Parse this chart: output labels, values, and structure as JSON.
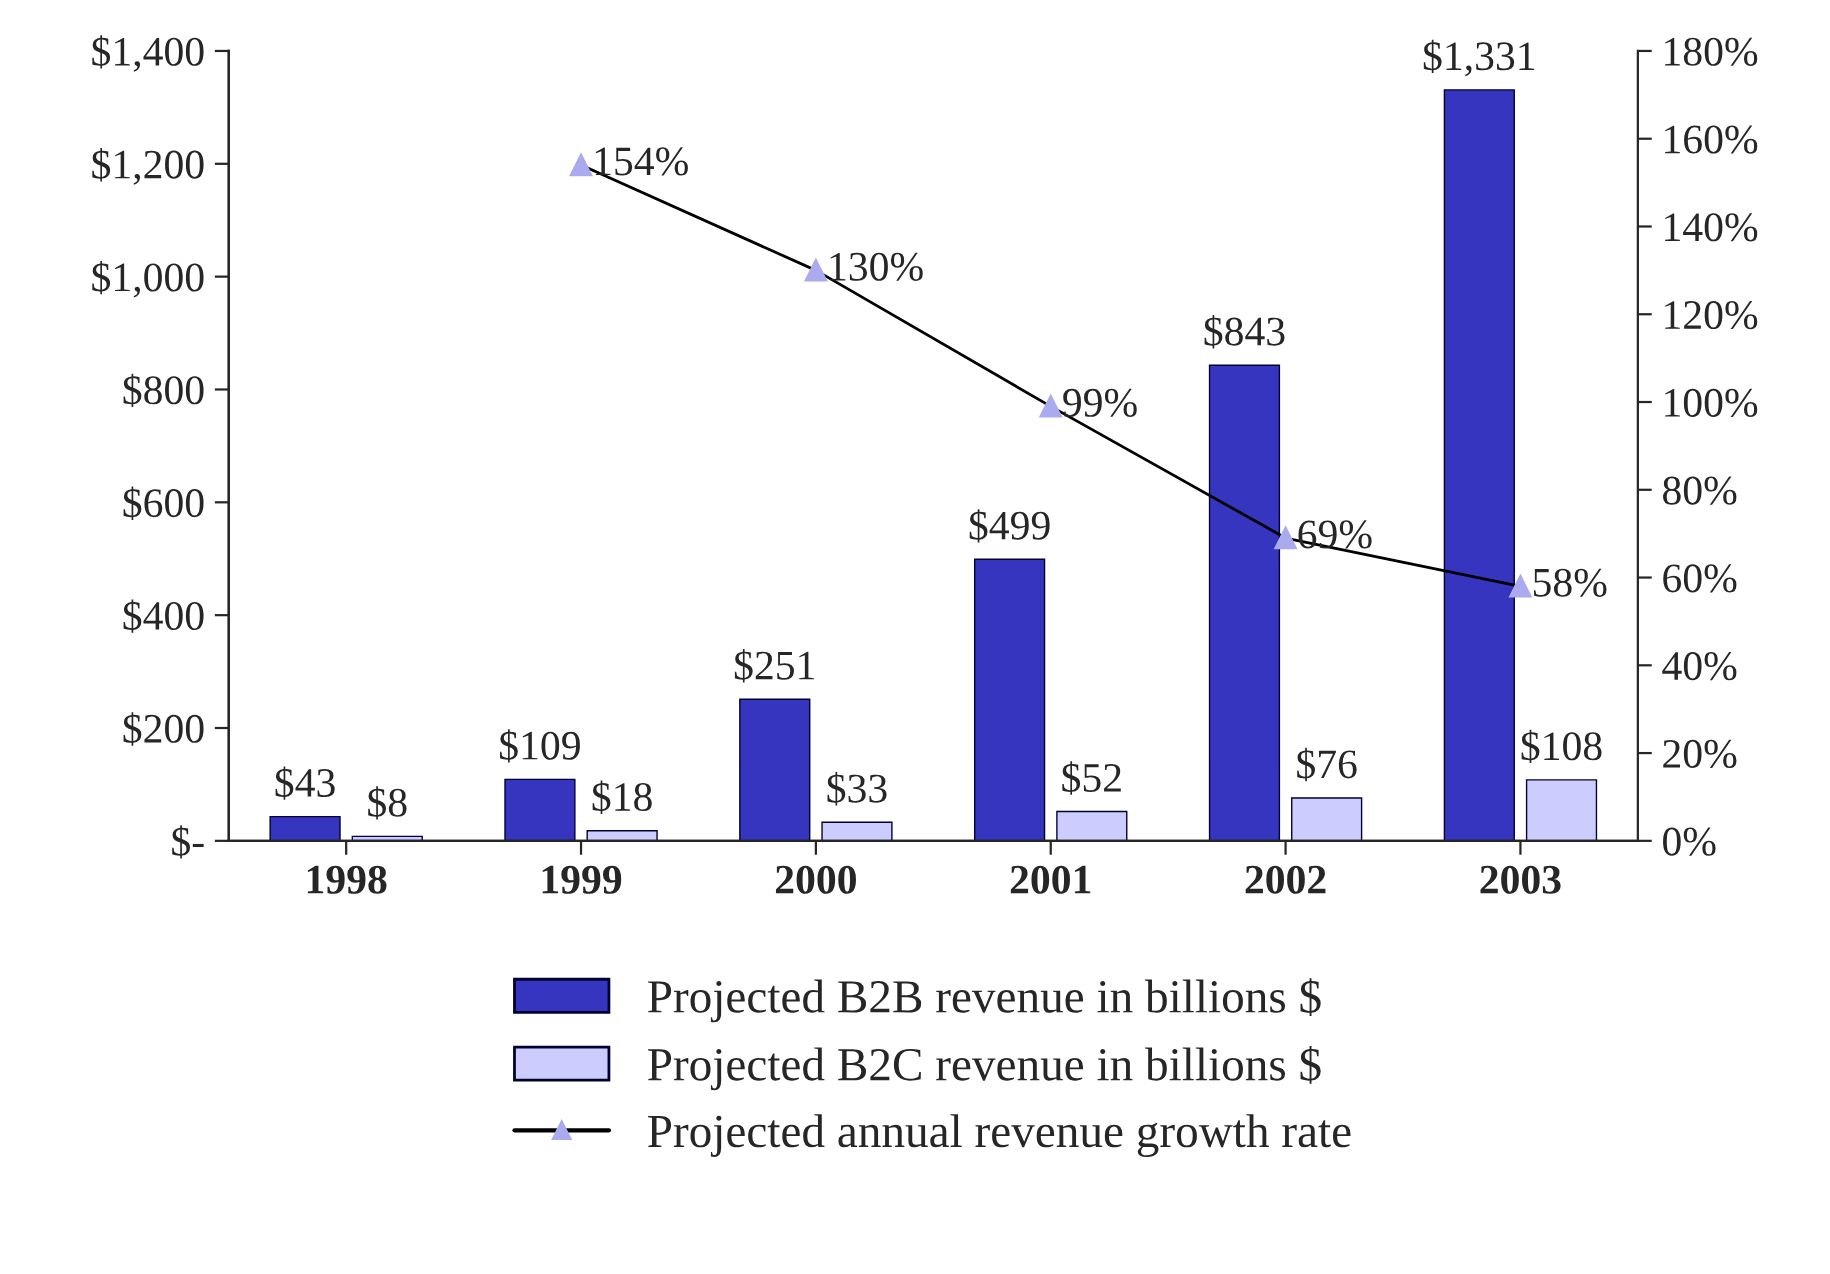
{
  "chart_data": {
    "type": "bar",
    "categories": [
      "1998",
      "1999",
      "2000",
      "2001",
      "2002",
      "2003"
    ],
    "series": [
      {
        "name": "Projected B2B revenue in billions $",
        "color": "#3535c0",
        "values": [
          43,
          109,
          251,
          499,
          843,
          1331
        ],
        "value_labels": [
          "$43",
          "$109",
          "$251",
          "$499",
          "$843",
          "$1,331"
        ]
      },
      {
        "name": "Projected B2C revenue in billions $",
        "color": "#ccccff",
        "values": [
          8,
          18,
          33,
          52,
          76,
          108
        ],
        "value_labels": [
          "$8",
          "$18",
          "$33",
          "$52",
          "$76",
          "$108"
        ]
      },
      {
        "name": "Projected annual revenue growth rate",
        "type": "line",
        "axis": "y2",
        "color": "#000000",
        "marker": "triangle",
        "values": [
          null,
          154,
          130,
          99,
          69,
          58
        ],
        "value_labels": [
          null,
          "154%",
          "130%",
          "99%",
          "69%",
          "58%"
        ]
      }
    ],
    "ylim": [
      0,
      1400
    ],
    "yticks": [
      {
        "value": 0,
        "label": "$-"
      },
      {
        "value": 200,
        "label": "$200"
      },
      {
        "value": 400,
        "label": "$400"
      },
      {
        "value": 600,
        "label": "$600"
      },
      {
        "value": 800,
        "label": "$800"
      },
      {
        "value": 1000,
        "label": "$1,000"
      },
      {
        "value": 1200,
        "label": "$1,200"
      },
      {
        "value": 1400,
        "label": "$1,400"
      }
    ],
    "y2lim": [
      0,
      180
    ],
    "y2ticks": [
      {
        "value": 0,
        "label": "0%"
      },
      {
        "value": 20,
        "label": "20%"
      },
      {
        "value": 40,
        "label": "40%"
      },
      {
        "value": 60,
        "label": "60%"
      },
      {
        "value": 80,
        "label": "80%"
      },
      {
        "value": 100,
        "label": "100%"
      },
      {
        "value": 120,
        "label": "120%"
      },
      {
        "value": 140,
        "label": "140%"
      },
      {
        "value": 160,
        "label": "160%"
      },
      {
        "value": 180,
        "label": "180%"
      }
    ],
    "grid": false,
    "legend": "bottom"
  }
}
